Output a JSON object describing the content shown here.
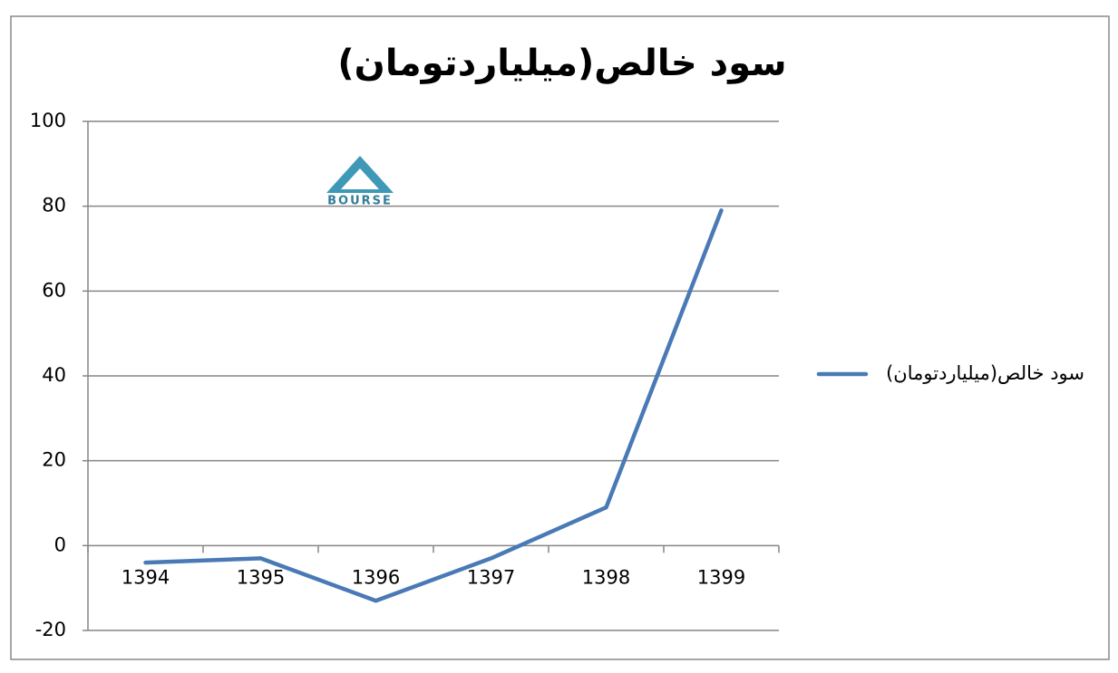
{
  "chart_data": {
    "type": "line",
    "title": "سود خالص(میلیاردتومان)",
    "categories": [
      "1394",
      "1395",
      "1396",
      "1397",
      "1398",
      "1399"
    ],
    "series": [
      {
        "name": "سود خالص(میلیاردتومان)",
        "color": "#4a7ab5",
        "values": [
          -4,
          -3,
          -13,
          -3,
          9,
          79
        ]
      }
    ],
    "ylim": [
      -20,
      100
    ],
    "yticks": [
      -20,
      0,
      20,
      40,
      60,
      80,
      100
    ],
    "grid": true,
    "legend": "right",
    "watermark": "BOURSE"
  }
}
